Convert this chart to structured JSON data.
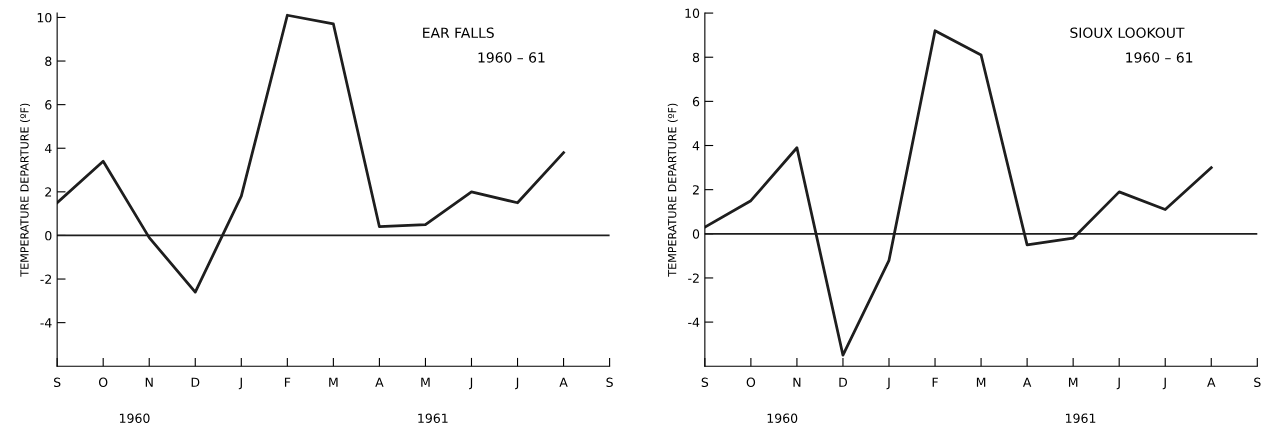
{
  "chart_data": [
    {
      "type": "line",
      "title": "EAR FALLS",
      "subtitle": "1960 – 61",
      "ylabel": "TEMPERATURE DEPARTURE (ºF)",
      "categories": [
        "S",
        "O",
        "N",
        "D",
        "J",
        "F",
        "M",
        "A",
        "M",
        "J",
        "J",
        "A",
        "S"
      ],
      "series": [
        {
          "color": "#1e1e1e",
          "values": [
            1.5,
            3.4,
            -0.1,
            -2.6,
            1.8,
            10.1,
            9.7,
            0.4,
            0.5,
            2.0,
            1.5,
            3.8,
            null
          ]
        }
      ],
      "ylim": [
        -6,
        10.2
      ],
      "yticks": [
        -4,
        -2,
        0,
        2,
        4,
        6,
        8,
        10
      ],
      "ref_lines": [
        {
          "axis": "y",
          "value": 0,
          "color": "#1e1e1e"
        }
      ],
      "annotations": [
        "1960",
        "1961"
      ],
      "grid": false,
      "legend": false
    },
    {
      "type": "line",
      "title": "SIOUX LOOKOUT",
      "subtitle": "1960 – 61",
      "ylabel": "TEMPERATURE DEPARTURE (ºF)",
      "categories": [
        "S",
        "O",
        "N",
        "D",
        "J",
        "F",
        "M",
        "A",
        "M",
        "J",
        "J",
        "A",
        "S"
      ],
      "series": [
        {
          "color": "#1e1e1e",
          "values": [
            0.3,
            1.5,
            3.9,
            -5.5,
            -1.2,
            9.2,
            8.1,
            -0.5,
            -0.2,
            1.9,
            1.1,
            3.0,
            null
          ]
        }
      ],
      "ylim": [
        -6,
        10
      ],
      "yticks": [
        -4,
        -2,
        0,
        2,
        4,
        6,
        8,
        10
      ],
      "ref_lines": [
        {
          "axis": "y",
          "value": 0,
          "color": "#1e1e1e"
        }
      ],
      "annotations": [
        "1960",
        "1961"
      ],
      "grid": false,
      "legend": false
    }
  ]
}
